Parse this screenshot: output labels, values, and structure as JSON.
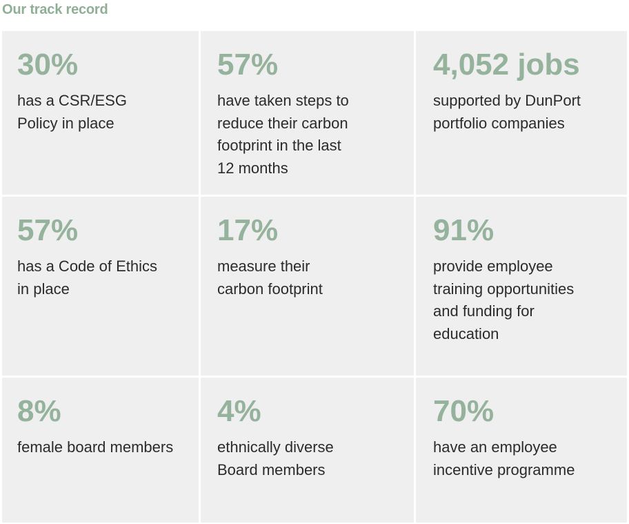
{
  "heading": "Our track record",
  "stats": [
    {
      "value": "30%",
      "label": [
        "has a CSR/ESG",
        "Policy in place"
      ]
    },
    {
      "value": "57%",
      "label": [
        "have taken steps to",
        "reduce their carbon",
        "footprint in the last",
        "12 months"
      ]
    },
    {
      "value": "4,052 jobs",
      "label": [
        "supported by DunPort",
        "portfolio companies"
      ]
    },
    {
      "value": "57%",
      "label": [
        "has a Code of Ethics",
        "in place"
      ]
    },
    {
      "value": "17%",
      "label": [
        "measure their",
        "carbon footprint"
      ]
    },
    {
      "value": "91%",
      "label": [
        "provide employee",
        "training opportunities",
        "and funding for",
        "education"
      ]
    },
    {
      "value": "8%",
      "label": [
        "female board members"
      ]
    },
    {
      "value": "4%",
      "label": [
        "ethnically diverse",
        "Board members"
      ]
    },
    {
      "value": "70%",
      "label": [
        "have an employee",
        "incentive programme"
      ]
    }
  ],
  "colors": {
    "accent": "#95b29c",
    "heading": "#8fae96",
    "cell_background": "#efefef",
    "text": "#2b2b2b"
  }
}
